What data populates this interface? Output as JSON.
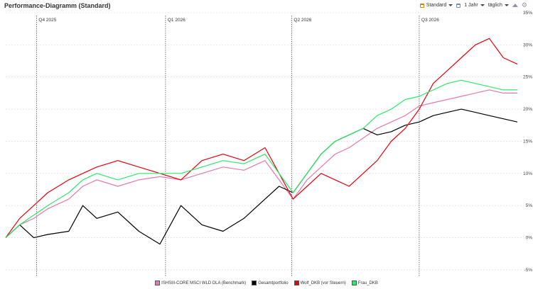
{
  "header": {
    "title": "Performance-Diagramm (Standard)"
  },
  "toolbar": {
    "view_label": "Standard",
    "period_label": "1 Jahr",
    "interval_label": "täglich"
  },
  "chart_data": {
    "type": "line",
    "title": "",
    "xlabel": "",
    "ylabel": "",
    "ylim": [
      -6,
      35
    ],
    "yticks": [
      -5,
      0,
      5,
      10,
      15,
      20,
      25,
      30,
      35
    ],
    "ytick_labels": [
      "-5%",
      "0%",
      "5%",
      "10%",
      "15%",
      "20%",
      "25%",
      "30%",
      "35%"
    ],
    "grid": true,
    "legend_position": "bottom-center",
    "quarter_markers": [
      {
        "label": "Q4 2025",
        "day": 22
      },
      {
        "label": "Q1 2026",
        "day": 114
      },
      {
        "label": "Q2 2026",
        "day": 204
      },
      {
        "label": "Q3 2026",
        "day": 295
      }
    ],
    "x_day_range": [
      0,
      365
    ],
    "series": [
      {
        "name": "ISHSIII-CORE MSCI WLD DLA (Benchmark)",
        "color": "#e07ab0",
        "x": [
          0,
          10,
          20,
          30,
          45,
          55,
          65,
          80,
          95,
          110,
          125,
          140,
          155,
          170,
          185,
          195,
          205,
          215,
          225,
          235,
          245,
          255,
          265,
          275,
          285,
          295,
          305,
          315,
          325,
          335,
          345,
          355,
          365
        ],
        "values": [
          0,
          2,
          3,
          4.5,
          6,
          8,
          9,
          8,
          9,
          9.5,
          9,
          10,
          11,
          10.5,
          12,
          9,
          6,
          9,
          11,
          13,
          14,
          15.5,
          17,
          18,
          19,
          20.5,
          21,
          21.5,
          22,
          22.5,
          23,
          22.5,
          22.5
        ]
      },
      {
        "name": "Gesamtportfolio",
        "color": "#000000",
        "x": [
          0,
          10,
          20,
          30,
          45,
          55,
          65,
          80,
          95,
          110,
          125,
          140,
          155,
          170,
          185,
          195,
          205,
          215,
          225,
          235,
          245,
          255,
          265,
          275,
          285,
          295,
          305,
          315,
          325,
          335,
          345,
          355,
          365
        ],
        "values": [
          0,
          2,
          0,
          0.5,
          1,
          5,
          3,
          4,
          1,
          -1,
          5,
          2,
          1,
          3,
          6,
          8,
          7,
          10,
          13,
          15,
          16,
          17,
          16,
          16.5,
          17.5,
          18,
          19,
          19.5,
          20,
          19.5,
          19,
          18.5,
          18
        ]
      },
      {
        "name": "Wolf_DKB (vor Steuern)",
        "color": "#e8000b",
        "x": [
          0,
          10,
          20,
          30,
          45,
          55,
          65,
          80,
          95,
          110,
          125,
          140,
          155,
          170,
          185,
          195,
          205,
          215,
          225,
          235,
          245,
          255,
          265,
          275,
          285,
          295,
          305,
          315,
          325,
          335,
          345,
          355,
          365
        ],
        "values": [
          0,
          3,
          5,
          7,
          9,
          10,
          11,
          12,
          11,
          10,
          9,
          12,
          13,
          12,
          14,
          10,
          6,
          8,
          10,
          9,
          8,
          10,
          12,
          15,
          17,
          20,
          24,
          26,
          28,
          30,
          31,
          28,
          27
        ]
      },
      {
        "name": "Frau_DKB",
        "color": "#2ee86a",
        "x": [
          0,
          10,
          20,
          30,
          45,
          55,
          65,
          80,
          95,
          110,
          125,
          140,
          155,
          170,
          185,
          195,
          205,
          215,
          225,
          235,
          245,
          255,
          265,
          275,
          285,
          295,
          305,
          315,
          325,
          335,
          345,
          355,
          365
        ],
        "values": [
          0,
          2,
          3.5,
          5,
          7,
          9,
          10,
          9,
          10,
          10,
          10,
          11,
          12,
          11.5,
          13,
          10,
          7,
          10,
          13,
          15,
          16,
          17,
          19,
          20,
          21.5,
          22,
          23,
          24,
          24.5,
          24,
          23.5,
          23,
          23
        ]
      }
    ]
  }
}
